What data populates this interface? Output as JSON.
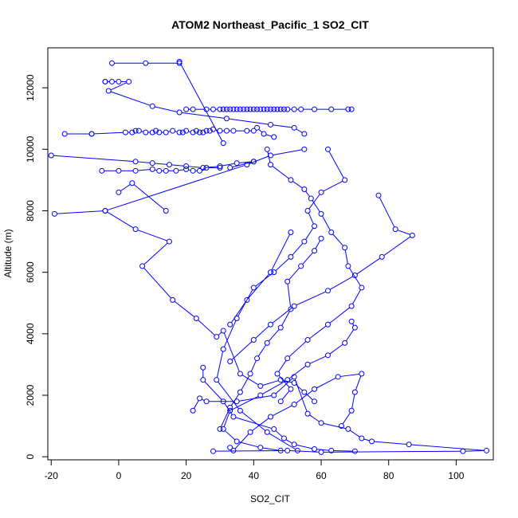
{
  "chart_data": {
    "type": "line",
    "title": "ATOM2 Northeast_Pacific_1 SO2_CIT",
    "xlabel": "SO2_CIT",
    "ylabel": "Altitude (m)",
    "xlim": [
      -21,
      111
    ],
    "ylim": [
      -100,
      13300
    ],
    "xticks": [
      -20,
      0,
      20,
      40,
      60,
      80,
      100
    ],
    "yticks": [
      0,
      2000,
      4000,
      6000,
      8000,
      10000,
      12000
    ],
    "grid": false,
    "color": "#0000ff",
    "series": [
      {
        "x": [
          -2,
          8,
          18,
          18,
          31
        ],
        "y": [
          12800,
          12800,
          12800,
          12850,
          10200
        ]
      },
      {
        "x": [
          -4,
          -4,
          -2,
          0,
          3,
          -3,
          10,
          18,
          32,
          45,
          52,
          55
        ],
        "y": [
          12200,
          12200,
          12200,
          12200,
          12200,
          11900,
          11400,
          11200,
          11000,
          10800,
          10700,
          10500
        ]
      },
      {
        "x": [
          20,
          22,
          26,
          28,
          30,
          31,
          32,
          33,
          34,
          35,
          36,
          37,
          38,
          39,
          40,
          41,
          42,
          43,
          44,
          45,
          46,
          47,
          48,
          49,
          50,
          52,
          54,
          58,
          63,
          68,
          69
        ],
        "y": [
          11300,
          11300,
          11300,
          11300,
          11300,
          11300,
          11300,
          11300,
          11300,
          11300,
          11300,
          11300,
          11300,
          11300,
          11300,
          11300,
          11300,
          11300,
          11300,
          11300,
          11300,
          11300,
          11300,
          11300,
          11300,
          11300,
          11300,
          11300,
          11300,
          11300,
          11300
        ]
      },
      {
        "x": [
          -16,
          -8,
          -8,
          2,
          4,
          5,
          6,
          8,
          10,
          11,
          12,
          14,
          16,
          18,
          19,
          20,
          22,
          23,
          24,
          25,
          26,
          27,
          28,
          30,
          32,
          34,
          38,
          40,
          41,
          43,
          46
        ],
        "y": [
          10500,
          10500,
          10500,
          10550,
          10550,
          10600,
          10600,
          10550,
          10550,
          10600,
          10550,
          10550,
          10600,
          10550,
          10550,
          10600,
          10550,
          10600,
          10550,
          10550,
          10600,
          10600,
          10650,
          10600,
          10600,
          10600,
          10600,
          10600,
          10700,
          10500,
          10400
        ]
      },
      {
        "x": [
          -20,
          5,
          10,
          15,
          20,
          25,
          30,
          35,
          40,
          40,
          33
        ],
        "y": [
          9800,
          9600,
          9550,
          9500,
          9450,
          9400,
          9450,
          9550,
          9600,
          9600,
          9400
        ]
      },
      {
        "x": [
          -5,
          0,
          5,
          10,
          12,
          14,
          17,
          20,
          22,
          24,
          26,
          30
        ],
        "y": [
          9300,
          9300,
          9300,
          9350,
          9300,
          9300,
          9300,
          9350,
          9300,
          9300,
          9400,
          9400
        ]
      },
      {
        "x": [
          -19,
          -4,
          38,
          45,
          55
        ],
        "y": [
          7900,
          8000,
          9500,
          9800,
          10000
        ]
      },
      {
        "x": [
          0,
          4,
          14
        ],
        "y": [
          8600,
          8900,
          8000
        ]
      },
      {
        "x": [
          -4,
          5,
          15,
          7,
          16,
          23,
          29,
          31,
          36,
          42,
          48,
          52,
          55,
          58
        ],
        "y": [
          8000,
          7400,
          7000,
          6200,
          5100,
          4500,
          3900,
          4100,
          2700,
          2300,
          2500,
          2400,
          2100,
          1800
        ]
      },
      {
        "x": [
          44,
          45,
          51,
          55,
          57,
          60,
          63,
          67,
          68,
          72,
          69,
          62,
          56,
          50,
          47,
          51,
          48
        ],
        "y": [
          10000,
          9500,
          9000,
          8700,
          8400,
          7900,
          7300,
          6800,
          6200,
          5500,
          4900,
          4300,
          3800,
          3200,
          2700,
          2200,
          1800
        ]
      },
      {
        "x": [
          62,
          67,
          60,
          56,
          58,
          55,
          51,
          46,
          40,
          35,
          31,
          29,
          36,
          44,
          53
        ],
        "y": [
          10000,
          9000,
          8600,
          8000,
          7500,
          7000,
          6500,
          6000,
          5500,
          4500,
          3500,
          2500,
          1500,
          800,
          200
        ]
      },
      {
        "x": [
          77,
          82,
          87,
          78,
          70,
          62,
          52,
          45,
          40,
          33
        ],
        "y": [
          8500,
          7400,
          7200,
          6500,
          5900,
          5400,
          4900,
          4300,
          3800,
          3100
        ]
      },
      {
        "x": [
          60,
          58,
          54,
          50,
          51,
          48,
          44,
          41,
          39,
          36,
          33,
          30
        ],
        "y": [
          7100,
          6700,
          6200,
          5700,
          4800,
          4200,
          3700,
          3200,
          2700,
          2100,
          1600,
          900
        ]
      },
      {
        "x": [
          51,
          45,
          38,
          33
        ],
        "y": [
          7300,
          6000,
          5100,
          4300
        ]
      },
      {
        "x": [
          22,
          24,
          26,
          35,
          46,
          52,
          56,
          60,
          68,
          72,
          75,
          86,
          109,
          102,
          60,
          50,
          28
        ],
        "y": [
          1500,
          1900,
          1800,
          1800,
          2000,
          2600,
          1400,
          1100,
          900,
          600,
          500,
          400,
          200,
          180,
          150,
          200,
          180
        ]
      },
      {
        "x": [
          25,
          25,
          31,
          34,
          46,
          49,
          52,
          58,
          63,
          70
        ],
        "y": [
          2900,
          2500,
          1800,
          1300,
          900,
          600,
          400,
          250,
          200,
          180
        ]
      },
      {
        "x": [
          33,
          34,
          39,
          45,
          52,
          58,
          65,
          72,
          70,
          69,
          66
        ],
        "y": [
          300,
          200,
          800,
          1300,
          1700,
          2200,
          2600,
          2700,
          2100,
          1500,
          1000
        ]
      },
      {
        "x": [
          48,
          42,
          35,
          31,
          33,
          42,
          50,
          56,
          62,
          67,
          70,
          69
        ],
        "y": [
          200,
          300,
          500,
          900,
          1500,
          2000,
          2500,
          3000,
          3300,
          3700,
          4200,
          4400
        ]
      }
    ]
  }
}
